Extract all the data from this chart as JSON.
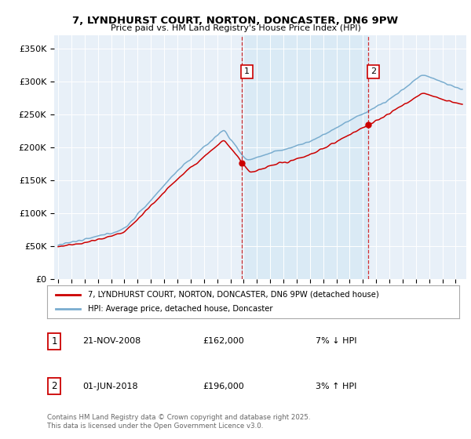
{
  "title": "7, LYNDHURST COURT, NORTON, DONCASTER, DN6 9PW",
  "subtitle": "Price paid vs. HM Land Registry's House Price Index (HPI)",
  "ylabel_ticks": [
    "£0",
    "£50K",
    "£100K",
    "£150K",
    "£200K",
    "£250K",
    "£300K",
    "£350K"
  ],
  "ytick_vals": [
    0,
    50000,
    100000,
    150000,
    200000,
    250000,
    300000,
    350000
  ],
  "ylim": [
    0,
    370000
  ],
  "sale1_x": 2008.88,
  "sale2_x": 2018.42,
  "sale1_price": 162000,
  "sale2_price": 196000,
  "legend_line1": "7, LYNDHURST COURT, NORTON, DONCASTER, DN6 9PW (detached house)",
  "legend_line2": "HPI: Average price, detached house, Doncaster",
  "footer": "Contains HM Land Registry data © Crown copyright and database right 2025.\nThis data is licensed under the Open Government Licence v3.0.",
  "red_color": "#cc0000",
  "blue_color": "#7aadcf",
  "shade_color": "#daeaf5",
  "bg_color": "#e8f0f8",
  "table_row1": [
    "1",
    "21-NOV-2008",
    "£162,000",
    "7% ↓ HPI"
  ],
  "table_row2": [
    "2",
    "01-JUN-2018",
    "£196,000",
    "3% ↑ HPI"
  ],
  "xmin": 1994.7,
  "xmax": 2025.8
}
